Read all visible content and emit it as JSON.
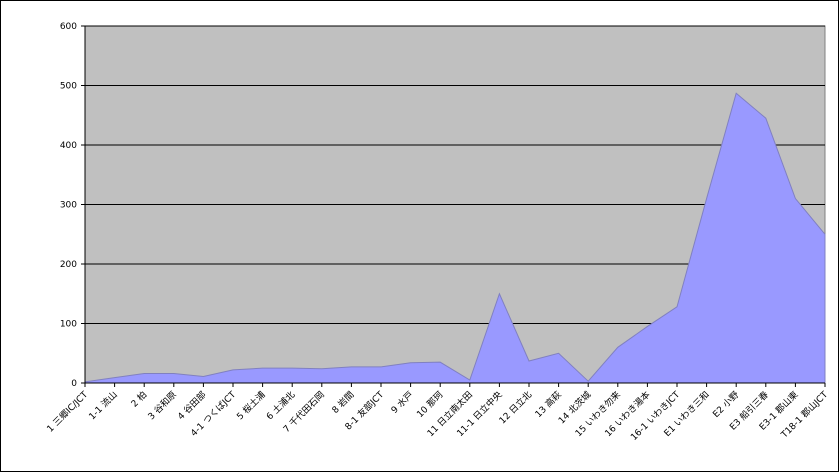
{
  "chart_data": {
    "type": "area",
    "title": "",
    "xlabel": "",
    "ylabel": "",
    "ylim": [
      0,
      600
    ],
    "yticks": [
      0,
      100,
      200,
      300,
      400,
      500,
      600
    ],
    "grid": true,
    "legend": "none",
    "colors": {
      "plot_background": "#c0c0c0",
      "area_fill": "#9999ff",
      "area_stroke": "#8080c0",
      "gridline": "#000000"
    },
    "categories": [
      "1 三郷IC/JCT",
      "1-1 流山",
      "2 柏",
      "3 谷和原",
      "4 谷田部",
      "4-1 つくばJCT",
      "5 桜土浦",
      "6 土浦北",
      "7 千代田石岡",
      "8 岩間",
      "8-1 友部JCT",
      "9 水戸",
      "10 那珂",
      "11 日立南太田",
      "11-1 日立中央",
      "12 日立北",
      "13 高萩",
      "14 北茨城",
      "15 いわき勿来",
      "16 いわき湯本",
      "16-1 いわきJCT",
      "E1 いわき三和",
      "E2 小野",
      "E3 船引三春",
      "E3-1 郡山東",
      "T18-1 郡山JCT"
    ],
    "series": [
      {
        "values": [
          2,
          9,
          16,
          16,
          11,
          22,
          25,
          25,
          24,
          27,
          27,
          34,
          35,
          5,
          150,
          37,
          50,
          3,
          60,
          95,
          128,
          310,
          487,
          445,
          310,
          250
        ]
      }
    ]
  }
}
